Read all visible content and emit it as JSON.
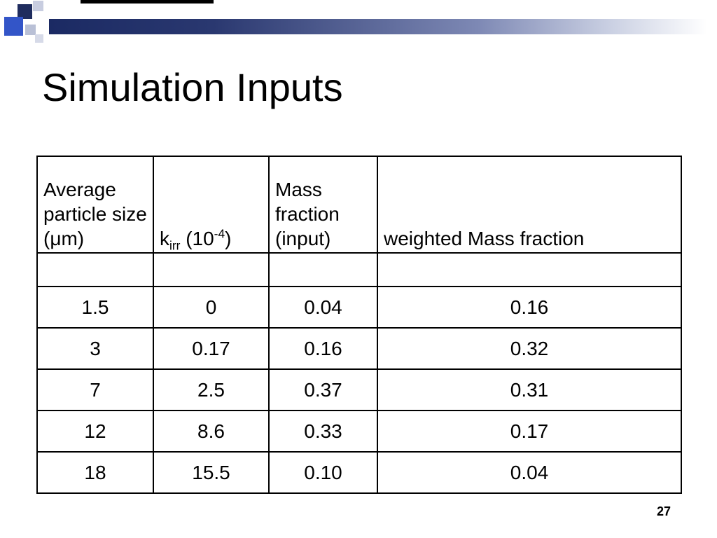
{
  "slide": {
    "title": "Simulation Inputs",
    "page_number": "27"
  },
  "decor": {
    "colors": {
      "navy_square": "#1f2c5e",
      "blue_square": "#3355c8",
      "gray_square": "#b9c0d6",
      "gradient_start": "#1b2a63",
      "gradient_end": "#ffffff"
    }
  },
  "table": {
    "headers": {
      "col1": "Average particle size (μm)",
      "col2": {
        "base": "k",
        "sub": "irr",
        "mid": " (10",
        "sup": "-4",
        "close": ")"
      },
      "col3": "Mass fraction (input)",
      "col4": "weighted Mass fraction"
    },
    "rows": [
      [
        "1.5",
        "0",
        "0.04",
        "0.16"
      ],
      [
        "3",
        "0.17",
        "0.16",
        "0.32"
      ],
      [
        "7",
        "2.5",
        "0.37",
        "0.31"
      ],
      [
        "12",
        "8.6",
        "0.33",
        "0.17"
      ],
      [
        "18",
        "15.5",
        "0.10",
        "0.04"
      ]
    ]
  }
}
